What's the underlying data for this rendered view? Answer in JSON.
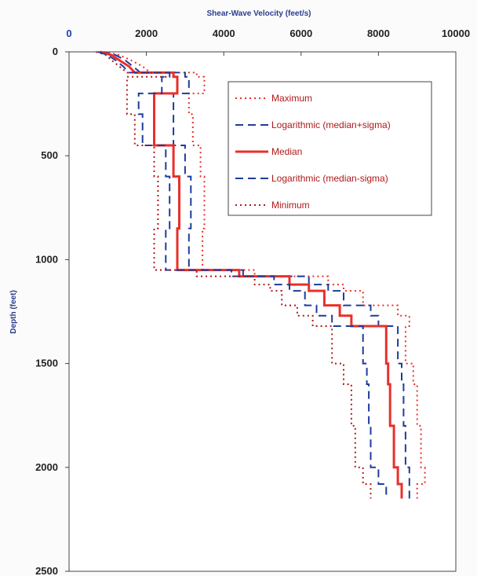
{
  "chart_data": {
    "type": "line",
    "title": "",
    "xlabel": "Shear-Wave Velocity (feet/s)",
    "ylabel": "Depth (feet)",
    "xlim": [
      0,
      10000
    ],
    "ylim": [
      2500,
      0
    ],
    "x_ticks": [
      "0",
      "2000",
      "4000",
      "6000",
      "8000",
      "10000"
    ],
    "y_ticks": [
      "0",
      "500",
      "1000",
      "1500",
      "2000",
      "2500"
    ],
    "x_axis_position": "top",
    "grid": false,
    "legend_position": "top-right",
    "colors": {
      "red": "#e8302a",
      "blue": "#1e3c9c"
    },
    "series": [
      {
        "name": "Maximum",
        "color": "#e8302a",
        "style": "dotted",
        "points": [
          [
            900,
            0
          ],
          [
            1300,
            15
          ],
          [
            1600,
            40
          ],
          [
            1900,
            70
          ],
          [
            2100,
            100
          ],
          [
            3300,
            100
          ],
          [
            3300,
            120
          ],
          [
            3500,
            120
          ],
          [
            3500,
            200
          ],
          [
            3100,
            200
          ],
          [
            3100,
            300
          ],
          [
            3200,
            300
          ],
          [
            3200,
            450
          ],
          [
            3400,
            450
          ],
          [
            3400,
            600
          ],
          [
            3500,
            600
          ],
          [
            3500,
            850
          ],
          [
            3450,
            850
          ],
          [
            3450,
            1050
          ],
          [
            4800,
            1050
          ],
          [
            4800,
            1080
          ],
          [
            6700,
            1080
          ],
          [
            6700,
            1120
          ],
          [
            7100,
            1120
          ],
          [
            7100,
            1150
          ],
          [
            7600,
            1150
          ],
          [
            7600,
            1220
          ],
          [
            8500,
            1220
          ],
          [
            8500,
            1270
          ],
          [
            8800,
            1270
          ],
          [
            8800,
            1320
          ],
          [
            8700,
            1320
          ],
          [
            8700,
            1500
          ],
          [
            8900,
            1500
          ],
          [
            8900,
            1600
          ],
          [
            9000,
            1600
          ],
          [
            9000,
            1800
          ],
          [
            9100,
            1800
          ],
          [
            9100,
            2000
          ],
          [
            9200,
            2000
          ],
          [
            9200,
            2080
          ],
          [
            9000,
            2080
          ],
          [
            9000,
            2150
          ]
        ]
      },
      {
        "name": "Logarithmic (median+sigma)",
        "color": "#1e3c9c",
        "style": "dashed",
        "points": [
          [
            850,
            0
          ],
          [
            1200,
            15
          ],
          [
            1450,
            40
          ],
          [
            1650,
            70
          ],
          [
            1850,
            100
          ],
          [
            3000,
            100
          ],
          [
            3000,
            120
          ],
          [
            3100,
            120
          ],
          [
            3100,
            200
          ],
          [
            2700,
            200
          ],
          [
            2700,
            300
          ],
          [
            2700,
            300
          ],
          [
            2700,
            450
          ],
          [
            3000,
            450
          ],
          [
            3000,
            600
          ],
          [
            3150,
            600
          ],
          [
            3150,
            850
          ],
          [
            3100,
            850
          ],
          [
            3100,
            1050
          ],
          [
            4500,
            1050
          ],
          [
            4500,
            1080
          ],
          [
            6200,
            1080
          ],
          [
            6200,
            1120
          ],
          [
            6700,
            1120
          ],
          [
            6700,
            1150
          ],
          [
            7100,
            1150
          ],
          [
            7100,
            1220
          ],
          [
            7800,
            1220
          ],
          [
            7800,
            1270
          ],
          [
            8000,
            1270
          ],
          [
            8000,
            1320
          ],
          [
            8500,
            1320
          ],
          [
            8500,
            1500
          ],
          [
            8600,
            1500
          ],
          [
            8600,
            1600
          ],
          [
            8650,
            1600
          ],
          [
            8650,
            1800
          ],
          [
            8700,
            1800
          ],
          [
            8700,
            2000
          ],
          [
            8800,
            2000
          ],
          [
            8800,
            2080
          ],
          [
            8800,
            2080
          ],
          [
            8800,
            2150
          ]
        ]
      },
      {
        "name": "Median",
        "color": "#e8302a",
        "style": "solid",
        "points": [
          [
            800,
            0
          ],
          [
            1100,
            15
          ],
          [
            1300,
            40
          ],
          [
            1550,
            70
          ],
          [
            1700,
            100
          ],
          [
            2700,
            100
          ],
          [
            2700,
            120
          ],
          [
            2800,
            120
          ],
          [
            2800,
            200
          ],
          [
            2200,
            200
          ],
          [
            2200,
            300
          ],
          [
            2200,
            300
          ],
          [
            2200,
            450
          ],
          [
            2700,
            450
          ],
          [
            2700,
            600
          ],
          [
            2850,
            600
          ],
          [
            2850,
            850
          ],
          [
            2800,
            850
          ],
          [
            2800,
            1050
          ],
          [
            4400,
            1050
          ],
          [
            4400,
            1080
          ],
          [
            5700,
            1080
          ],
          [
            5700,
            1120
          ],
          [
            6200,
            1120
          ],
          [
            6200,
            1150
          ],
          [
            6600,
            1150
          ],
          [
            6600,
            1220
          ],
          [
            7000,
            1220
          ],
          [
            7000,
            1270
          ],
          [
            7300,
            1270
          ],
          [
            7300,
            1320
          ],
          [
            8200,
            1320
          ],
          [
            8200,
            1500
          ],
          [
            8250,
            1500
          ],
          [
            8250,
            1600
          ],
          [
            8300,
            1600
          ],
          [
            8300,
            1800
          ],
          [
            8400,
            1800
          ],
          [
            8400,
            2000
          ],
          [
            8500,
            2000
          ],
          [
            8500,
            2080
          ],
          [
            8600,
            2080
          ],
          [
            8600,
            2150
          ]
        ]
      },
      {
        "name": "Logarithmic (median-sigma)",
        "color": "#1e3c9c",
        "style": "dashed",
        "points": [
          [
            750,
            0
          ],
          [
            1000,
            15
          ],
          [
            1200,
            40
          ],
          [
            1400,
            70
          ],
          [
            1550,
            100
          ],
          [
            2600,
            100
          ],
          [
            2600,
            120
          ],
          [
            2400,
            120
          ],
          [
            2400,
            200
          ],
          [
            1800,
            200
          ],
          [
            1800,
            300
          ],
          [
            1900,
            300
          ],
          [
            1900,
            450
          ],
          [
            2500,
            450
          ],
          [
            2500,
            600
          ],
          [
            2600,
            600
          ],
          [
            2600,
            850
          ],
          [
            2500,
            850
          ],
          [
            2500,
            1050
          ],
          [
            4200,
            1050
          ],
          [
            4200,
            1080
          ],
          [
            5300,
            1080
          ],
          [
            5300,
            1120
          ],
          [
            5700,
            1120
          ],
          [
            5700,
            1150
          ],
          [
            6100,
            1150
          ],
          [
            6100,
            1220
          ],
          [
            6400,
            1220
          ],
          [
            6400,
            1270
          ],
          [
            6800,
            1270
          ],
          [
            6800,
            1320
          ],
          [
            7600,
            1320
          ],
          [
            7600,
            1500
          ],
          [
            7700,
            1500
          ],
          [
            7700,
            1600
          ],
          [
            7750,
            1600
          ],
          [
            7750,
            1800
          ],
          [
            7800,
            1800
          ],
          [
            7800,
            2000
          ],
          [
            8000,
            2000
          ],
          [
            8000,
            2080
          ],
          [
            8200,
            2080
          ],
          [
            8200,
            2150
          ]
        ]
      },
      {
        "name": "Minimum",
        "color": "#b01818",
        "style": "dotted",
        "points": [
          [
            700,
            0
          ],
          [
            950,
            15
          ],
          [
            1100,
            40
          ],
          [
            1300,
            70
          ],
          [
            1500,
            100
          ],
          [
            2500,
            100
          ],
          [
            2500,
            120
          ],
          [
            1500,
            120
          ],
          [
            1500,
            200
          ],
          [
            1500,
            200
          ],
          [
            1500,
            300
          ],
          [
            1700,
            300
          ],
          [
            1700,
            450
          ],
          [
            2200,
            450
          ],
          [
            2200,
            600
          ],
          [
            2300,
            600
          ],
          [
            2300,
            850
          ],
          [
            2200,
            850
          ],
          [
            2200,
            1050
          ],
          [
            3300,
            1050
          ],
          [
            3300,
            1080
          ],
          [
            4800,
            1080
          ],
          [
            4800,
            1120
          ],
          [
            5200,
            1120
          ],
          [
            5200,
            1150
          ],
          [
            5500,
            1150
          ],
          [
            5500,
            1220
          ],
          [
            5900,
            1220
          ],
          [
            5900,
            1270
          ],
          [
            6300,
            1270
          ],
          [
            6300,
            1320
          ],
          [
            6800,
            1320
          ],
          [
            6800,
            1500
          ],
          [
            7100,
            1500
          ],
          [
            7100,
            1600
          ],
          [
            7300,
            1600
          ],
          [
            7300,
            1800
          ],
          [
            7400,
            1800
          ],
          [
            7400,
            2000
          ],
          [
            7600,
            2000
          ],
          [
            7600,
            2080
          ],
          [
            7800,
            2080
          ],
          [
            7800,
            2150
          ]
        ]
      }
    ]
  }
}
